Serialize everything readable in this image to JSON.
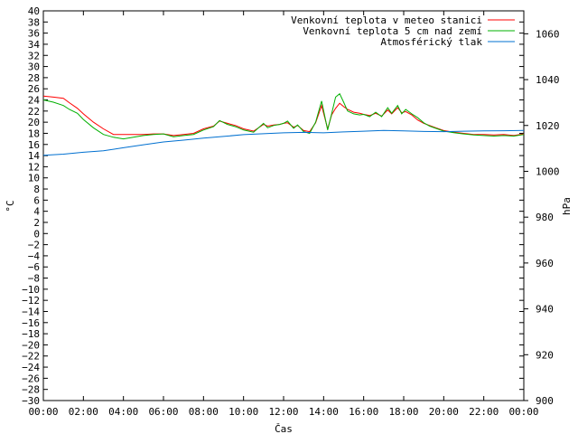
{
  "chart_data": {
    "type": "line",
    "xlabel": "Čas",
    "ylabel": "°C",
    "y2label": "hPa",
    "xlim": [
      0,
      24
    ],
    "ylim": [
      -30,
      40
    ],
    "y2lim": [
      900,
      1070
    ],
    "x_ticks": [
      "00:00",
      "02:00",
      "04:00",
      "06:00",
      "08:00",
      "10:00",
      "12:00",
      "14:00",
      "16:00",
      "18:00",
      "20:00",
      "22:00",
      "00:00"
    ],
    "y_ticks": [
      -30,
      -28,
      -26,
      -24,
      -22,
      -20,
      -18,
      -16,
      -14,
      -12,
      -10,
      -8,
      -6,
      -4,
      -2,
      0,
      2,
      4,
      6,
      8,
      10,
      12,
      14,
      16,
      18,
      20,
      22,
      24,
      26,
      28,
      30,
      32,
      34,
      36,
      38,
      40
    ],
    "y2_ticks": [
      900,
      920,
      940,
      960,
      980,
      1000,
      1020,
      1040,
      1060
    ],
    "legend_position": "top-right",
    "grid": false,
    "series": [
      {
        "name": "Venkovní teplota v meteo stanici",
        "axis": "left",
        "color": "#ff0000",
        "x": [
          0,
          0.5,
          1,
          1.3,
          1.7,
          2.0,
          2.5,
          3.0,
          3.5,
          4.0,
          4.5,
          5.0,
          5.5,
          6.0,
          6.5,
          7.0,
          7.5,
          8.0,
          8.5,
          8.8,
          9.2,
          9.6,
          10.0,
          10.5,
          11.0,
          11.2,
          11.5,
          11.8,
          12.0,
          12.2,
          12.5,
          12.7,
          13.0,
          13.3,
          13.6,
          13.9,
          14.2,
          14.4,
          14.6,
          14.8,
          15.0,
          15.2,
          15.5,
          15.8,
          16.0,
          16.3,
          16.6,
          16.9,
          17.2,
          17.4,
          17.7,
          17.9,
          18.1,
          18.4,
          18.7,
          19.0,
          19.3,
          19.6,
          20.0,
          20.5,
          21.0,
          21.5,
          22.0,
          22.5,
          23.0,
          23.5,
          24.0
        ],
        "y": [
          24.7,
          24.5,
          24.3,
          23.5,
          22.5,
          21.5,
          20.0,
          18.8,
          17.8,
          17.8,
          17.8,
          17.8,
          17.9,
          17.9,
          17.6,
          17.8,
          18.0,
          18.8,
          19.3,
          20.2,
          19.8,
          19.4,
          18.8,
          18.4,
          19.6,
          19.3,
          19.5,
          19.6,
          19.8,
          19.9,
          19.1,
          19.4,
          18.5,
          18.3,
          19.9,
          23.0,
          18.8,
          21.3,
          22.5,
          23.4,
          22.8,
          22.3,
          21.8,
          21.6,
          21.4,
          21.2,
          21.6,
          21.1,
          22.2,
          21.5,
          22.6,
          21.7,
          21.9,
          21.3,
          20.4,
          19.8,
          19.4,
          19.0,
          18.5,
          18.2,
          18.0,
          17.8,
          17.8,
          17.7,
          17.8,
          17.6,
          17.9
        ]
      },
      {
        "name": "Venkovní teplota 5 cm nad zemí",
        "axis": "left",
        "color": "#00b000",
        "x": [
          0,
          0.5,
          1,
          1.3,
          1.7,
          2.0,
          2.5,
          3.0,
          3.5,
          4.0,
          4.5,
          5.0,
          5.5,
          6.0,
          6.5,
          7.0,
          7.5,
          8.0,
          8.5,
          8.8,
          9.2,
          9.6,
          10.0,
          10.5,
          11.0,
          11.2,
          11.5,
          11.8,
          12.0,
          12.2,
          12.5,
          12.7,
          13.0,
          13.3,
          13.6,
          13.9,
          14.2,
          14.4,
          14.6,
          14.8,
          15.0,
          15.2,
          15.5,
          15.8,
          16.0,
          16.3,
          16.6,
          16.9,
          17.2,
          17.4,
          17.7,
          17.9,
          18.1,
          18.4,
          18.7,
          19.0,
          19.3,
          19.6,
          20.0,
          20.5,
          21.0,
          21.5,
          22.0,
          22.5,
          23.0,
          23.5,
          24.0
        ],
        "y": [
          24.0,
          23.6,
          23.0,
          22.3,
          21.6,
          20.5,
          19.0,
          17.8,
          17.3,
          17.0,
          17.3,
          17.6,
          17.8,
          17.9,
          17.4,
          17.6,
          17.8,
          18.6,
          19.2,
          20.3,
          19.6,
          19.2,
          18.6,
          18.2,
          19.8,
          19.0,
          19.4,
          19.6,
          19.8,
          20.2,
          18.9,
          19.5,
          18.3,
          18.0,
          20.0,
          23.8,
          18.6,
          21.5,
          24.5,
          25.1,
          23.6,
          22.0,
          21.5,
          21.3,
          21.4,
          21.0,
          21.8,
          21.0,
          22.6,
          21.6,
          23.0,
          21.5,
          22.3,
          21.5,
          20.8,
          19.9,
          19.3,
          18.9,
          18.4,
          18.1,
          17.9,
          17.7,
          17.6,
          17.5,
          17.6,
          17.5,
          17.8
        ]
      },
      {
        "name": "Atmosférický tlak",
        "axis": "right",
        "color": "#0070d0",
        "x": [
          0,
          1,
          2,
          3,
          4,
          5,
          6,
          7,
          8,
          9,
          10,
          11,
          12,
          13,
          14,
          15,
          16,
          17,
          18,
          19,
          20,
          21,
          22,
          23,
          24
        ],
        "y": [
          1007.0,
          1007.5,
          1008.3,
          1009.0,
          1010.3,
          1011.6,
          1012.8,
          1013.6,
          1014.5,
          1015.2,
          1016.0,
          1016.4,
          1016.8,
          1017.0,
          1016.8,
          1017.2,
          1017.5,
          1017.8,
          1017.6,
          1017.4,
          1017.3,
          1017.5,
          1017.6,
          1017.7,
          1017.8
        ]
      }
    ]
  }
}
